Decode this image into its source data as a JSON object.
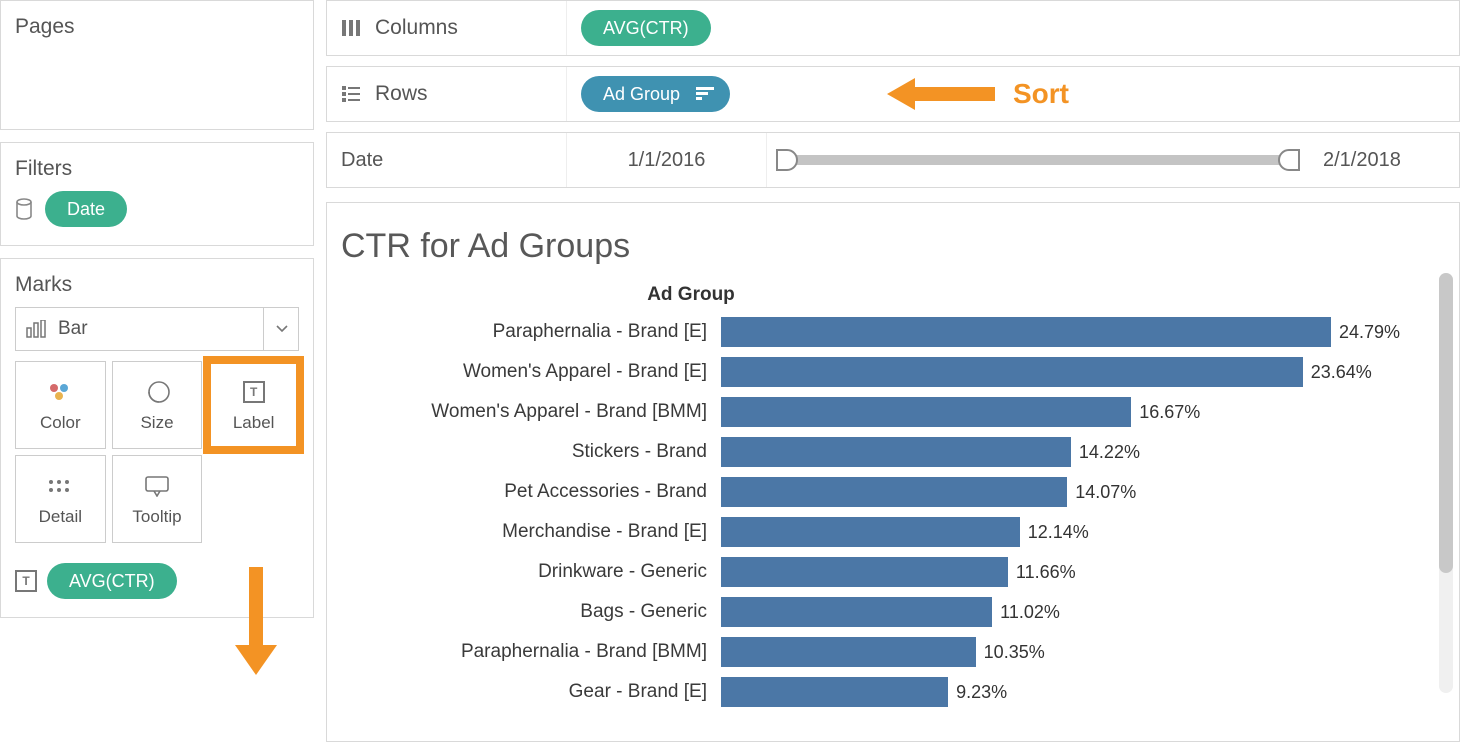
{
  "panels": {
    "pages": "Pages",
    "filters": "Filters",
    "marks": "Marks"
  },
  "filters": {
    "date_pill": "Date"
  },
  "marks": {
    "type": "Bar",
    "cells": {
      "color": "Color",
      "size": "Size",
      "label": "Label",
      "detail": "Detail",
      "tooltip": "Tooltip"
    },
    "label_pill": "AVG(CTR)"
  },
  "shelves": {
    "columns_label": "Columns",
    "columns_pill": "AVG(CTR)",
    "rows_label": "Rows",
    "rows_pill": "Ad Group"
  },
  "annotation": {
    "sort": "Sort"
  },
  "date_filter": {
    "label": "Date",
    "start": "1/1/2016",
    "end": "2/1/2018"
  },
  "chart": {
    "title": "CTR for Ad Groups",
    "axis_title": "Ad Group",
    "bar_color": "#4b77a6",
    "max_value": 24.79,
    "rows": [
      {
        "label": "Paraphernalia - Brand [E]",
        "value": 24.79,
        "display": "24.79%"
      },
      {
        "label": "Women's Apparel - Brand [E]",
        "value": 23.64,
        "display": "23.64%"
      },
      {
        "label": "Women's Apparel - Brand [BMM]",
        "value": 16.67,
        "display": "16.67%"
      },
      {
        "label": "Stickers - Brand",
        "value": 14.22,
        "display": "14.22%"
      },
      {
        "label": "Pet Accessories - Brand",
        "value": 14.07,
        "display": "14.07%"
      },
      {
        "label": "Merchandise - Brand [E]",
        "value": 12.14,
        "display": "12.14%"
      },
      {
        "label": "Drinkware - Generic",
        "value": 11.66,
        "display": "11.66%"
      },
      {
        "label": "Bags - Generic",
        "value": 11.02,
        "display": "11.02%"
      },
      {
        "label": "Paraphernalia - Brand [BMM]",
        "value": 10.35,
        "display": "10.35%"
      },
      {
        "label": "Gear - Brand [E]",
        "value": 9.23,
        "display": "9.23%"
      }
    ]
  },
  "colors": {
    "accent_green": "#3cb08e",
    "accent_blue": "#3f92b1",
    "annotation_orange": "#f39324"
  }
}
